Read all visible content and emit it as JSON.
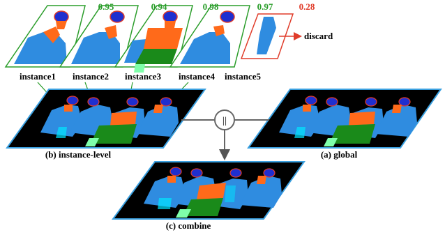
{
  "instances": [
    {
      "label": "instance1",
      "score": "0.95",
      "status": "kept"
    },
    {
      "label": "instance2",
      "score": "0.94",
      "status": "kept"
    },
    {
      "label": "instance3",
      "score": "0.98",
      "status": "kept"
    },
    {
      "label": "instance4",
      "score": "0.97",
      "status": "kept"
    },
    {
      "label": "instance5",
      "score": "0.28",
      "status": "discarded"
    }
  ],
  "discard_label": "discard",
  "panels": {
    "instance_level": "(b) instance-level",
    "global": "(a) global",
    "combine": "(c) combine"
  },
  "operator_symbol": "||",
  "colors": {
    "kept": "#2a9d2a",
    "discarded": "#e03c2a",
    "panel_border": "#3aa0e0",
    "person_body": "#2f8ce0",
    "person_head": "#1f2fcf",
    "torso_highlight": "#ff6a1a",
    "legs_green": "#1a8a1a",
    "arrow_gray": "#666666"
  }
}
